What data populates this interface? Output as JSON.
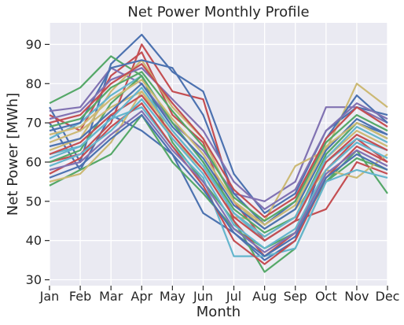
{
  "chart_data": {
    "type": "line",
    "title": "Net Power Monthly Profile",
    "xlabel": "Month",
    "ylabel": "Net Power [MWh]",
    "categories": [
      "Jan",
      "Feb",
      "Mar",
      "Apr",
      "May",
      "Jun",
      "Jul",
      "Aug",
      "Sep",
      "Oct",
      "Nov",
      "Dec"
    ],
    "ylim": [
      28.5,
      95.5
    ],
    "yticks": [
      30,
      40,
      50,
      60,
      70,
      80,
      90
    ],
    "grid": true,
    "background": "#eaeaf2",
    "palette": [
      "#4c72b0",
      "#55a868",
      "#c44e52",
      "#8172b2",
      "#ccb974",
      "#64b5cd"
    ],
    "series": [
      {
        "color": "#4c72b0",
        "values": [
          74,
          60,
          85,
          92.5,
          83,
          78,
          57,
          47,
          52,
          68,
          74,
          72
        ]
      },
      {
        "color": "#4c72b0",
        "values": [
          70,
          58,
          72,
          68,
          62,
          47,
          42,
          35,
          40,
          62,
          70,
          67
        ]
      },
      {
        "color": "#55a868",
        "values": [
          75,
          79,
          87,
          82,
          65,
          55,
          45,
          32,
          38,
          55,
          63,
          52
        ]
      },
      {
        "color": "#55a868",
        "values": [
          54,
          58,
          62,
          72,
          60,
          52,
          43,
          38,
          42,
          55,
          61,
          58
        ]
      },
      {
        "color": "#c44e52",
        "values": [
          60,
          62,
          70,
          90,
          78,
          76,
          50,
          40,
          45,
          48,
          60,
          57
        ]
      },
      {
        "color": "#c44e52",
        "values": [
          72,
          68,
          82,
          88,
          72,
          65,
          45,
          36,
          42,
          58,
          66,
          60
        ]
      },
      {
        "color": "#8172b2",
        "values": [
          73,
          74,
          84,
          80,
          70,
          63,
          52,
          50,
          55,
          74,
          74,
          70
        ]
      },
      {
        "color": "#ccb974",
        "values": [
          55,
          57,
          65,
          78,
          66,
          58,
          46,
          45,
          59,
          63,
          80,
          74
        ]
      },
      {
        "color": "#ccb974",
        "values": [
          63,
          66,
          78,
          86,
          74,
          66,
          50,
          43,
          48,
          58,
          56,
          62
        ]
      },
      {
        "color": "#64b5cd",
        "values": [
          62,
          64,
          71,
          74,
          64,
          56,
          36,
          36,
          38,
          55,
          58,
          56
        ]
      },
      {
        "color": "#64b5cd",
        "values": [
          66,
          70,
          77,
          82,
          70,
          60,
          47,
          40,
          45,
          60,
          66,
          63
        ]
      },
      {
        "color": "#4c72b0",
        "values": [
          68,
          70,
          84,
          86,
          84,
          72,
          52,
          44,
          50,
          66,
          77,
          70
        ]
      },
      {
        "color": "#55a868",
        "values": [
          60,
          63,
          75,
          82,
          70,
          60,
          48,
          42,
          46,
          62,
          70,
          66
        ]
      },
      {
        "color": "#c44e52",
        "values": [
          57,
          61,
          69,
          75,
          64,
          54,
          40,
          34,
          40,
          56,
          64,
          60
        ]
      },
      {
        "color": "#8172b2",
        "values": [
          71,
          73,
          81,
          84,
          76,
          68,
          55,
          48,
          53,
          68,
          75,
          71
        ]
      },
      {
        "color": "#ccb974",
        "values": [
          65,
          68,
          74,
          78,
          68,
          59,
          47,
          41,
          46,
          61,
          68,
          64
        ]
      },
      {
        "color": "#64b5cd",
        "values": [
          59,
          62,
          68,
          76,
          66,
          57,
          44,
          38,
          43,
          58,
          65,
          61
        ]
      },
      {
        "color": "#4c72b0",
        "values": [
          64,
          66,
          73,
          80,
          69,
          61,
          49,
          43,
          48,
          63,
          71,
          67
        ]
      },
      {
        "color": "#55a868",
        "values": [
          69,
          71,
          79,
          83,
          73,
          64,
          51,
          45,
          50,
          65,
          72,
          68
        ]
      },
      {
        "color": "#c44e52",
        "values": [
          62,
          65,
          72,
          77,
          67,
          58,
          46,
          40,
          45,
          60,
          67,
          63
        ]
      },
      {
        "color": "#8172b2",
        "values": [
          58,
          60,
          67,
          73,
          63,
          55,
          43,
          37,
          42,
          57,
          63,
          59
        ]
      },
      {
        "color": "#ccb974",
        "values": [
          67,
          69,
          76,
          81,
          71,
          62,
          50,
          44,
          49,
          64,
          70,
          66
        ]
      },
      {
        "color": "#64b5cd",
        "values": [
          61,
          64,
          71,
          79,
          68,
          59,
          47,
          41,
          46,
          61,
          69,
          65
        ]
      },
      {
        "color": "#4c72b0",
        "values": [
          56,
          59,
          66,
          72,
          62,
          53,
          42,
          36,
          41,
          56,
          62,
          58
        ]
      },
      {
        "color": "#c44e52",
        "values": [
          70,
          72,
          80,
          85,
          75,
          66,
          53,
          46,
          51,
          66,
          74,
          69
        ]
      }
    ]
  }
}
